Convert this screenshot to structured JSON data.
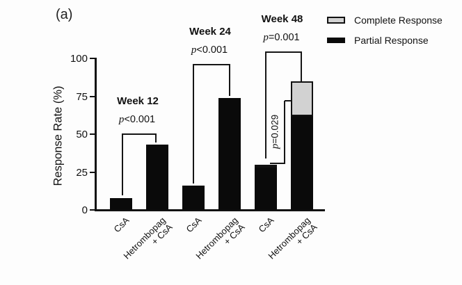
{
  "figure_label": "(a)",
  "legend": {
    "items": [
      {
        "label": "Complete Response",
        "fill": "#d2d2d2",
        "border": "#111111"
      },
      {
        "label": "Partial Response",
        "fill": "#0a0a0a",
        "border": "#0a0a0a"
      }
    ]
  },
  "chart_data": {
    "type": "bar",
    "stacked": true,
    "title": "(a)",
    "xlabel": "",
    "ylabel": "Response Rate (%)",
    "ylim": [
      0,
      100
    ],
    "yticks": [
      0,
      25,
      50,
      75,
      100
    ],
    "grid": false,
    "legend_position": "top-right",
    "colors": {
      "partial": "#0a0a0a",
      "complete": "#d2d2d2",
      "axis": "#111111"
    },
    "series": [
      {
        "name": "Partial Response",
        "values": [
          8,
          43,
          16,
          74,
          28,
          62
        ]
      },
      {
        "name": "Complete Response",
        "values": [
          0,
          0,
          0,
          0,
          2,
          23
        ]
      }
    ],
    "categories": [
      "CsA",
      "Hetrombopag + CsA",
      "CsA",
      "Hetrombopag + CsA",
      "CsA",
      "Hetrombopag + CsA"
    ],
    "x_tick_lines": [
      [
        "CsA"
      ],
      [
        "Hetrombopag",
        "+ CsA"
      ],
      [
        "CsA"
      ],
      [
        "Hetrombopag",
        "+ CsA"
      ],
      [
        "CsA"
      ],
      [
        "Hetrombopag",
        "+ CsA"
      ]
    ],
    "groups": [
      {
        "label": "Week 12",
        "p_value": "p<0.001",
        "bars": [
          {
            "category": "CsA",
            "partial": 8,
            "complete": 0,
            "total": 8
          },
          {
            "category": "Hetrombopag + CsA",
            "partial": 43,
            "complete": 0,
            "total": 43
          }
        ]
      },
      {
        "label": "Week 24",
        "p_value": "p<0.001",
        "bars": [
          {
            "category": "CsA",
            "partial": 16,
            "complete": 0,
            "total": 16
          },
          {
            "category": "Hetrombopag + CsA",
            "partial": 74,
            "complete": 0,
            "total": 74
          }
        ]
      },
      {
        "label": "Week 48",
        "p_value": "p=0.001",
        "inner_p_value": "p=0.029",
        "bars": [
          {
            "category": "CsA",
            "partial": 28,
            "complete": 2,
            "total": 30
          },
          {
            "category": "Hetrombopag + CsA",
            "partial": 62,
            "complete": 23,
            "total": 85
          }
        ]
      }
    ]
  }
}
